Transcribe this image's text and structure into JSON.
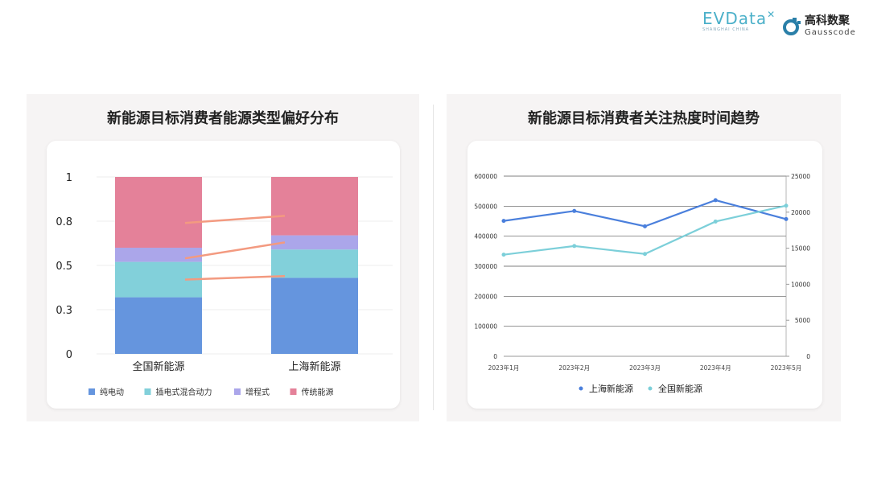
{
  "logos": {
    "evdata": "EVData",
    "evdata_sub": "SHANGHAI CHINA",
    "gauss_cn": "高科数聚",
    "gauss_en": "Gausscode"
  },
  "chart_data": [
    {
      "type": "bar",
      "stacked": true,
      "title": "新能源目标消费者能源类型偏好分布",
      "categories": [
        "全国新能源",
        "上海新能源"
      ],
      "ylim": [
        0,
        1
      ],
      "yticks": [
        0,
        0.25,
        0.5,
        0.75,
        1
      ],
      "ytick_labels": [
        "0",
        "0.3",
        "0.5",
        "0.8",
        "1"
      ],
      "grid": true,
      "legend": "bottom",
      "series": [
        {
          "name": "纯电动",
          "values": [
            0.32,
            0.43
          ],
          "color": "#6595de"
        },
        {
          "name": "插电式混合动力",
          "values": [
            0.2,
            0.16
          ],
          "color": "#82d0da"
        },
        {
          "name": "增程式",
          "values": [
            0.08,
            0.08
          ],
          "color": "#aba6ea"
        },
        {
          "name": "传统能源",
          "values": [
            0.4,
            0.33
          ],
          "color": "#e48199"
        }
      ]
    },
    {
      "type": "line",
      "title": "新能源目标消费者关注热度时间趋势",
      "categories": [
        "2023年1月",
        "2023年2月",
        "2023年3月",
        "2023年4月",
        "2023年5月"
      ],
      "ylim": [
        0,
        600000
      ],
      "yticks": [
        0,
        100000,
        200000,
        300000,
        400000,
        500000,
        600000
      ],
      "y2lim": [
        0,
        25000
      ],
      "y2ticks": [
        0,
        5000,
        10000,
        15000,
        20000,
        25000
      ],
      "grid": true,
      "legend": "bottom",
      "series": [
        {
          "name": "上海新能源",
          "axis": "left",
          "values": [
            451000,
            484000,
            433000,
            520000,
            457000
          ],
          "color": "#4a7fdc"
        },
        {
          "name": "全国新能源",
          "axis": "right",
          "values": [
            14100,
            15300,
            14200,
            18700,
            20900
          ],
          "color": "#7ccfd9"
        }
      ]
    }
  ]
}
